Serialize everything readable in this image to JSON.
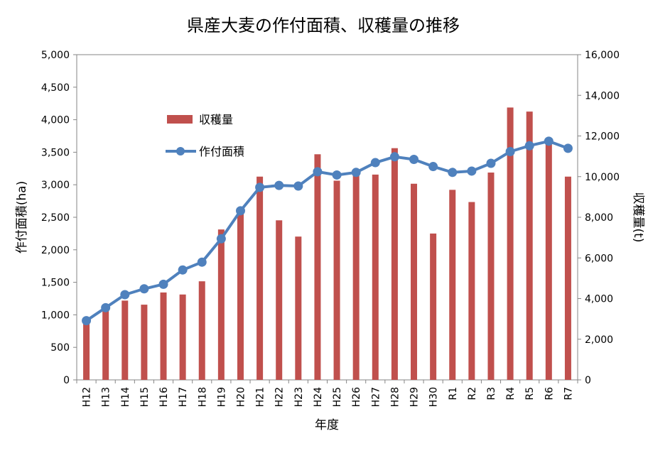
{
  "chart_data": {
    "type": "bar+line",
    "title": "県産大麦の作付面積、収穫量の推移",
    "xlabel": "年度",
    "ylabel_left": "作付面積(ha)",
    "ylabel_right": "収穫量(t)",
    "y_left_range": [
      0,
      5000
    ],
    "y_right_range": [
      0,
      16000
    ],
    "y_left_ticks": [
      "0",
      "500",
      "1,000",
      "1,500",
      "2,000",
      "2,500",
      "3,000",
      "3,500",
      "4,000",
      "4,500",
      "5,000"
    ],
    "y_right_ticks": [
      "0",
      "2,000",
      "4,000",
      "6,000",
      "8,000",
      "10,000",
      "12,000",
      "14,000",
      "16,000"
    ],
    "categories": [
      "H12",
      "H13",
      "H14",
      "H15",
      "H16",
      "H17",
      "H18",
      "H19",
      "H20",
      "H21",
      "H22",
      "H23",
      "H24",
      "H25",
      "H26",
      "H27",
      "H28",
      "H29",
      "H30",
      "R1",
      "R2",
      "R3",
      "R4",
      "R5",
      "R6",
      "R7"
    ],
    "legend_position": "inside-upper-left",
    "grid": false,
    "series": [
      {
        "name": "収穫量",
        "type": "bar",
        "axis": "right",
        "color": "#C0504D",
        "values": [
          2900,
          3500,
          3900,
          3700,
          4300,
          4200,
          4850,
          7400,
          8200,
          10000,
          7850,
          7050,
          11100,
          9800,
          10100,
          10100,
          11400,
          9650,
          7200,
          9350,
          8750,
          10200,
          13400,
          13200,
          11700,
          10000
        ]
      },
      {
        "name": "作付面積",
        "type": "line",
        "axis": "left",
        "color": "#4F81BD",
        "values": [
          910,
          1110,
          1310,
          1400,
          1470,
          1690,
          1810,
          2170,
          2600,
          2960,
          2990,
          2980,
          3200,
          3150,
          3190,
          3340,
          3430,
          3390,
          3280,
          3190,
          3210,
          3330,
          3510,
          3600,
          3670,
          3560
        ]
      }
    ]
  }
}
